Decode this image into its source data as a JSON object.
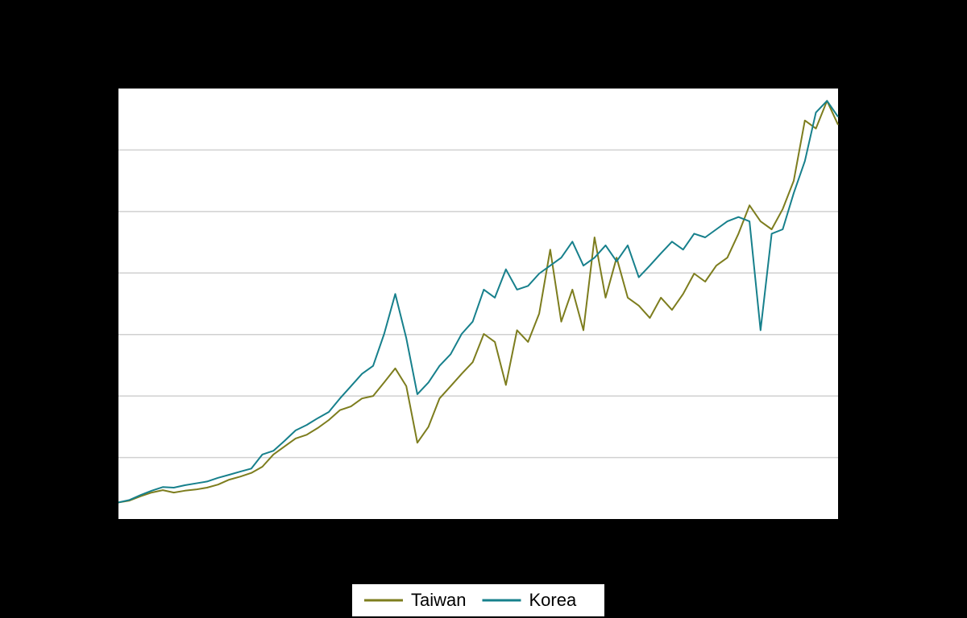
{
  "chart_data": {
    "type": "line",
    "ylim": [
      0,
      7
    ],
    "yticks": [
      1,
      2,
      3,
      4,
      5,
      6
    ],
    "grid": true,
    "series": [
      {
        "name": "Taiwan",
        "color": "#7d7d1e",
        "values": [
          0.27,
          0.3,
          0.37,
          0.43,
          0.47,
          0.43,
          0.46,
          0.48,
          0.51,
          0.56,
          0.64,
          0.69,
          0.75,
          0.85,
          1.05,
          1.18,
          1.31,
          1.37,
          1.48,
          1.61,
          1.77,
          1.83,
          1.96,
          2.0,
          2.22,
          2.45,
          2.16,
          1.24,
          1.5,
          1.96,
          2.16,
          2.36,
          2.55,
          3.01,
          2.88,
          2.18,
          3.07,
          2.88,
          3.34,
          4.38,
          3.21,
          3.73,
          3.07,
          4.58,
          3.6,
          4.25,
          3.6,
          3.47,
          3.27,
          3.6,
          3.4,
          3.66,
          3.99,
          3.86,
          4.12,
          4.25,
          4.64,
          5.1,
          4.84,
          4.71,
          5.04,
          5.5,
          6.48,
          6.35,
          6.8,
          6.41
        ]
      },
      {
        "name": "Korea",
        "color": "#17808c",
        "values": [
          0.27,
          0.31,
          0.39,
          0.46,
          0.52,
          0.51,
          0.55,
          0.58,
          0.61,
          0.67,
          0.72,
          0.77,
          0.82,
          1.05,
          1.11,
          1.27,
          1.44,
          1.53,
          1.64,
          1.74,
          1.96,
          2.16,
          2.36,
          2.49,
          3.01,
          3.66,
          2.94,
          2.03,
          2.22,
          2.49,
          2.68,
          3.01,
          3.21,
          3.73,
          3.6,
          4.06,
          3.73,
          3.79,
          3.99,
          4.12,
          4.25,
          4.51,
          4.12,
          4.25,
          4.45,
          4.19,
          4.45,
          3.93,
          4.12,
          4.32,
          4.51,
          4.38,
          4.64,
          4.58,
          4.71,
          4.84,
          4.91,
          4.84,
          3.07,
          4.64,
          4.71,
          5.3,
          5.82,
          6.61,
          6.8,
          6.54
        ]
      }
    ],
    "legend": "bottom"
  }
}
